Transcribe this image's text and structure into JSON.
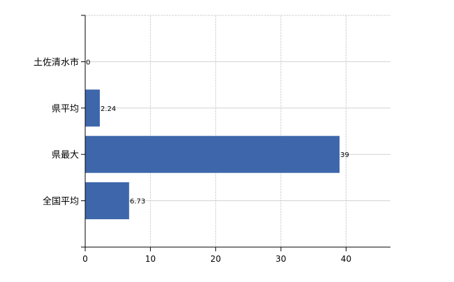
{
  "chart_data": {
    "type": "bar",
    "orientation": "horizontal",
    "categories": [
      "土佐清水市",
      "県平均",
      "県最大",
      "全国平均"
    ],
    "values": [
      0,
      2.24,
      39,
      6.73
    ],
    "data_labels": [
      "0",
      "2.24",
      "39",
      "6.73"
    ],
    "xlim": [
      0,
      46.8
    ],
    "xticks": [
      0,
      10,
      20,
      30,
      40
    ],
    "xtick_labels": [
      "0",
      "10",
      "20",
      "30",
      "40"
    ],
    "title": "",
    "xlabel": "",
    "ylabel": "",
    "grid": true,
    "bar_color": "#3e67ab"
  }
}
